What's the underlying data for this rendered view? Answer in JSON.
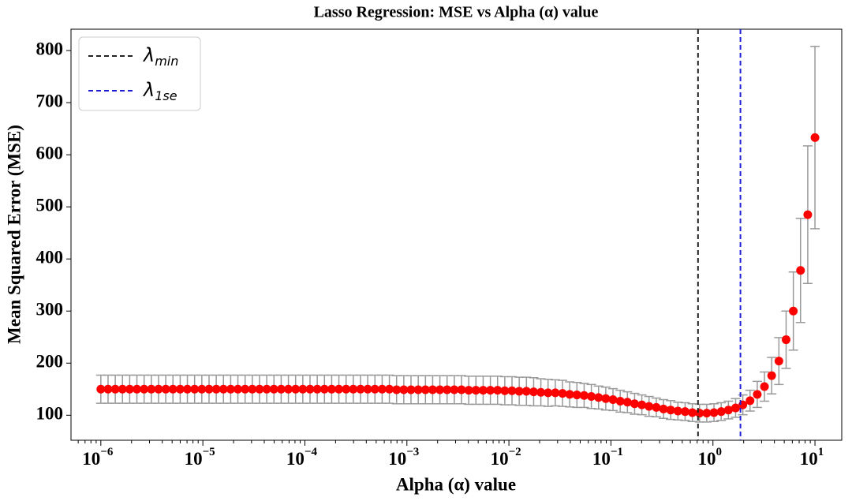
{
  "chart_data": {
    "type": "errorbar",
    "title": "Lasso Regression: MSE vs Alpha (α) value",
    "xlabel": "Alpha (α) value",
    "ylabel": "Mean Squared Error (MSE)",
    "xscale": "log",
    "xlim": [
      5.1e-07,
      18.3
    ],
    "ylim": [
      52,
      841
    ],
    "xticks": [
      {
        "value": 1e-06,
        "label": "10",
        "exponent": "−6"
      },
      {
        "value": 1e-05,
        "label": "10",
        "exponent": "−5"
      },
      {
        "value": 0.0001,
        "label": "10",
        "exponent": "−4"
      },
      {
        "value": 0.001,
        "label": "10",
        "exponent": "−3"
      },
      {
        "value": 0.01,
        "label": "10",
        "exponent": "−2"
      },
      {
        "value": 0.1,
        "label": "10",
        "exponent": "−1"
      },
      {
        "value": 1,
        "label": "10",
        "exponent": "0"
      },
      {
        "value": 10,
        "label": "10",
        "exponent": "1"
      }
    ],
    "yticks": [
      100,
      200,
      300,
      400,
      500,
      600,
      700,
      800
    ],
    "grid": false,
    "legend": "upper left",
    "marker_color": "#ff0000",
    "error_color": "#999999",
    "x": [
      1e-06,
      1.177e-06,
      1.385e-06,
      1.63e-06,
      1.918e-06,
      2.257e-06,
      2.656e-06,
      3.126e-06,
      3.679e-06,
      4.329e-06,
      5.094e-06,
      5.995e-06,
      7.055e-06,
      8.302e-06,
      9.77e-06,
      1.15e-05,
      1.353e-05,
      1.592e-05,
      1.874e-05,
      2.205e-05,
      2.595e-05,
      3.054e-05,
      3.594e-05,
      4.229e-05,
      4.977e-05,
      5.857e-05,
      6.893e-05,
      8.111e-05,
      9.545e-05,
      0.0001123,
      0.0001322,
      0.0001556,
      0.0001831,
      0.0002154,
      0.0002535,
      0.0002983,
      0.0003511,
      0.0004132,
      0.0004863,
      0.0005722,
      0.0006734,
      0.0007925,
      0.0009326,
      0.001097,
      0.001292,
      0.00152,
      0.001789,
      0.002105,
      0.002477,
      0.002915,
      0.003431,
      0.004037,
      0.004751,
      0.005591,
      0.006579,
      0.007743,
      0.009112,
      0.01072,
      0.01262,
      0.01485,
      0.01748,
      0.02057,
      0.0242,
      0.02848,
      0.03352,
      0.03945,
      0.04642,
      0.05462,
      0.06428,
      0.07565,
      0.08902,
      0.1048,
      0.1233,
      0.1451,
      0.1707,
      0.2009,
      0.2364,
      0.2783,
      0.3275,
      0.3854,
      0.4535,
      0.5337,
      0.628,
      0.7391,
      0.8697,
      1.024,
      1.205,
      1.418,
      1.668,
      1.963,
      2.31,
      2.719,
      3.199,
      3.765,
      4.431,
      5.214,
      6.136,
      7.221,
      8.498,
      10
    ],
    "values": [
      150,
      150,
      150,
      150,
      150,
      150,
      150,
      150,
      150,
      150,
      150,
      150,
      150,
      150,
      150,
      150,
      150,
      150,
      150,
      150,
      150,
      150,
      150,
      150,
      150,
      150,
      150,
      150,
      150,
      150,
      150,
      150,
      150,
      150,
      150,
      150,
      150,
      150,
      150,
      150,
      150,
      149,
      149,
      149,
      149,
      149,
      149,
      149,
      149,
      149,
      149,
      148,
      148,
      148,
      148,
      148,
      147,
      147,
      146,
      146,
      145,
      144,
      143,
      143,
      142,
      140,
      139,
      138,
      136,
      134,
      132,
      130,
      127,
      125,
      122,
      120,
      117,
      115,
      112,
      110,
      108,
      107,
      105,
      104,
      104,
      105,
      107,
      110,
      114,
      120,
      128,
      140,
      155,
      176,
      204,
      245,
      300,
      378,
      485,
      633
    ],
    "errors": [
      27,
      27,
      27,
      27,
      27,
      27,
      27,
      27,
      27,
      27,
      27,
      27,
      27,
      27,
      27,
      27,
      27,
      27,
      27,
      27,
      27,
      27,
      27,
      27,
      27,
      27,
      27,
      27,
      27,
      27,
      27,
      27,
      27,
      27,
      27,
      27,
      27,
      27,
      27,
      27,
      27,
      27,
      27,
      27,
      27,
      27,
      27,
      27,
      27,
      27,
      27,
      27,
      27,
      27,
      27,
      27,
      27,
      27,
      27,
      27,
      27,
      26,
      26,
      25,
      25,
      24,
      24,
      23,
      23,
      22,
      22,
      21,
      21,
      20,
      20,
      19,
      19,
      18,
      18,
      18,
      17,
      17,
      17,
      17,
      17,
      17,
      17,
      17,
      18,
      19,
      20,
      25,
      28,
      35,
      45,
      55,
      75,
      100,
      132,
      175
    ],
    "vlines": [
      {
        "symbol": "λ",
        "subscript": "min",
        "x": 0.714,
        "color": "#222222"
      },
      {
        "symbol": "λ",
        "subscript": "1se",
        "x": 1.86,
        "color": "#1f1fd6"
      }
    ]
  }
}
